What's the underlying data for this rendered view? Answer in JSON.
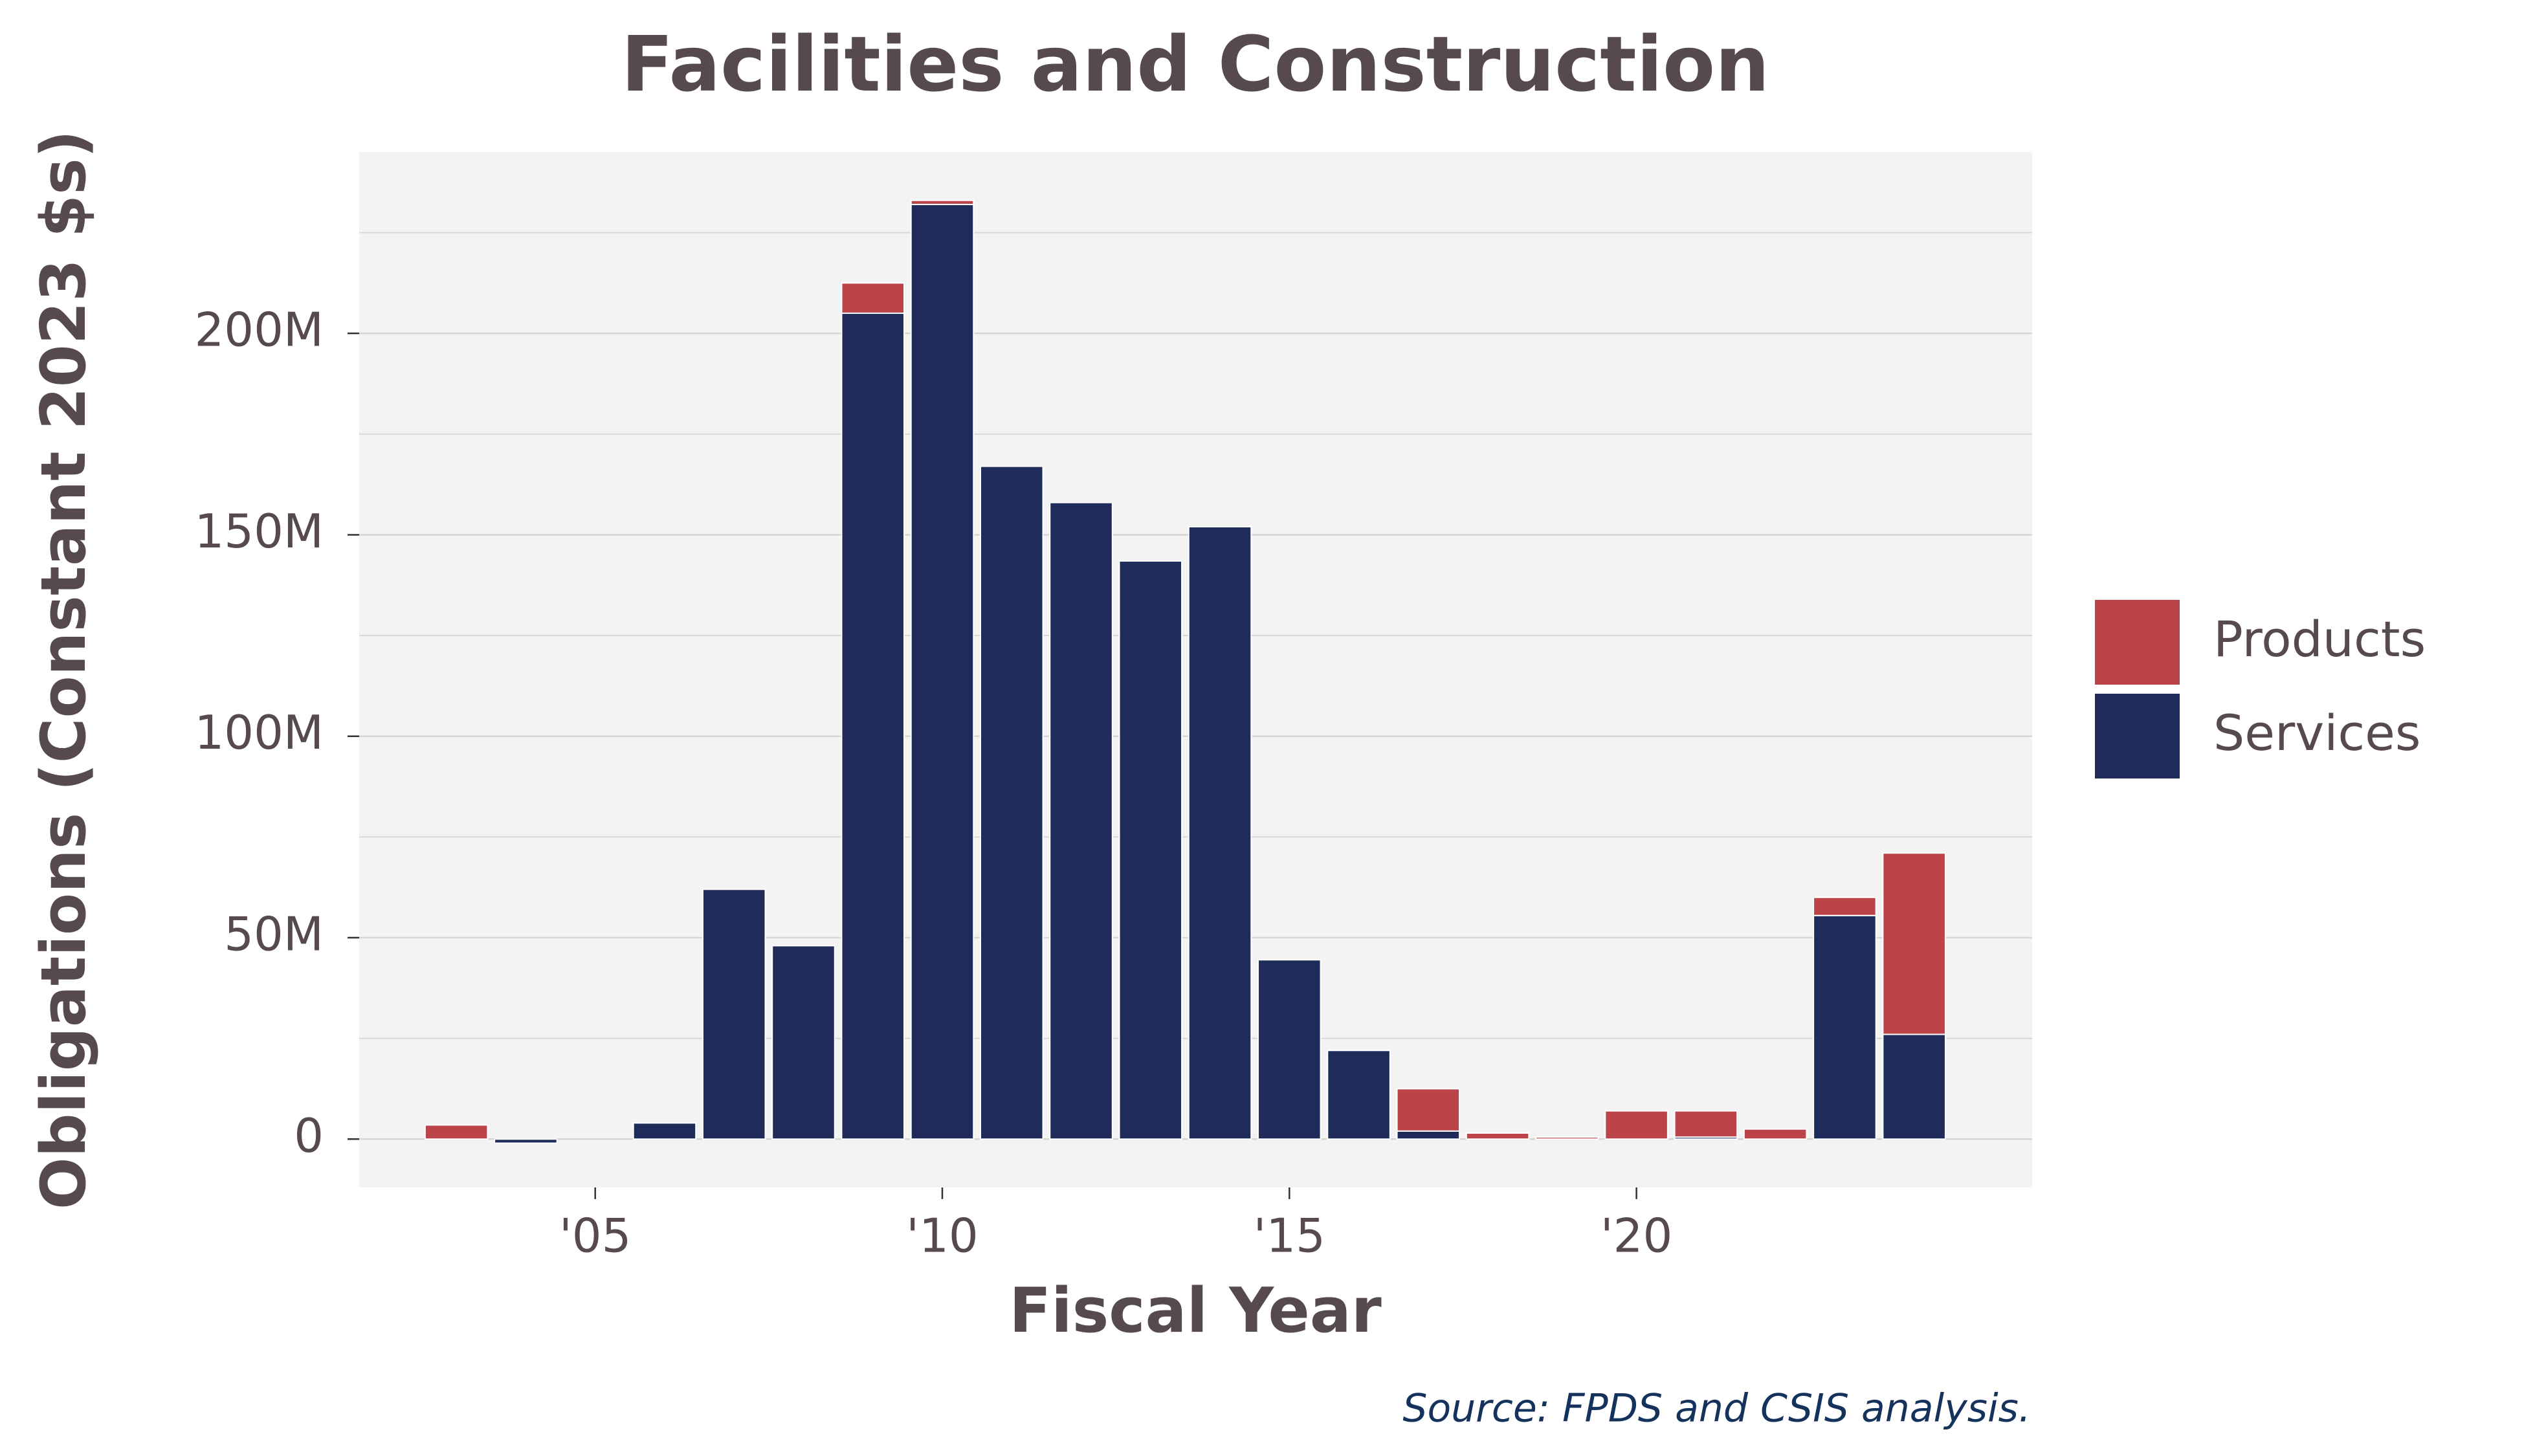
{
  "chart_data": {
    "type": "bar",
    "stacked": true,
    "title": "Facilities and Construction",
    "xlabel": "Fiscal Year",
    "ylabel": "Obligations (Constant 2023 $s)",
    "caption": "Source: FPDS and CSIS analysis.",
    "x": [
      2003,
      2004,
      2005,
      2006,
      2007,
      2008,
      2009,
      2010,
      2011,
      2012,
      2013,
      2014,
      2015,
      2016,
      2017,
      2018,
      2019,
      2020,
      2021,
      2022,
      2023,
      2024
    ],
    "xlim": [
      2001.6,
      2025.7
    ],
    "ylim": [
      -12,
      245
    ],
    "xticks": [
      2005,
      2010,
      2015,
      2020
    ],
    "xtick_labels": [
      "'05",
      "'10",
      "'15",
      "'20"
    ],
    "yticks": [
      0,
      50,
      100,
      150,
      200
    ],
    "ytick_labels": [
      "0",
      "50M",
      "100M",
      "150M",
      "200M"
    ],
    "unit": "M",
    "grid": true,
    "legend_position": "right",
    "series": [
      {
        "name": "Services",
        "color": "#1f2b59",
        "values": [
          0,
          -1,
          0,
          4,
          62,
          48,
          205,
          232,
          167,
          158,
          143.5,
          152,
          44.5,
          22,
          2,
          0,
          0,
          0,
          0.5,
          0,
          55.5,
          26
        ]
      },
      {
        "name": "Products",
        "color": "#bc4348",
        "values": [
          3.5,
          0,
          0,
          0,
          0,
          0,
          7.5,
          1,
          0,
          0,
          0,
          0,
          0,
          0,
          10.5,
          1.5,
          0.5,
          7,
          6.5,
          2.5,
          4.5,
          45
        ]
      }
    ],
    "legend": [
      "Products",
      "Services"
    ],
    "colors": {
      "panel_background": "#f3f3f3",
      "grid": "#d6d6d6",
      "text": "#574a4f",
      "caption": "#14325c"
    }
  }
}
